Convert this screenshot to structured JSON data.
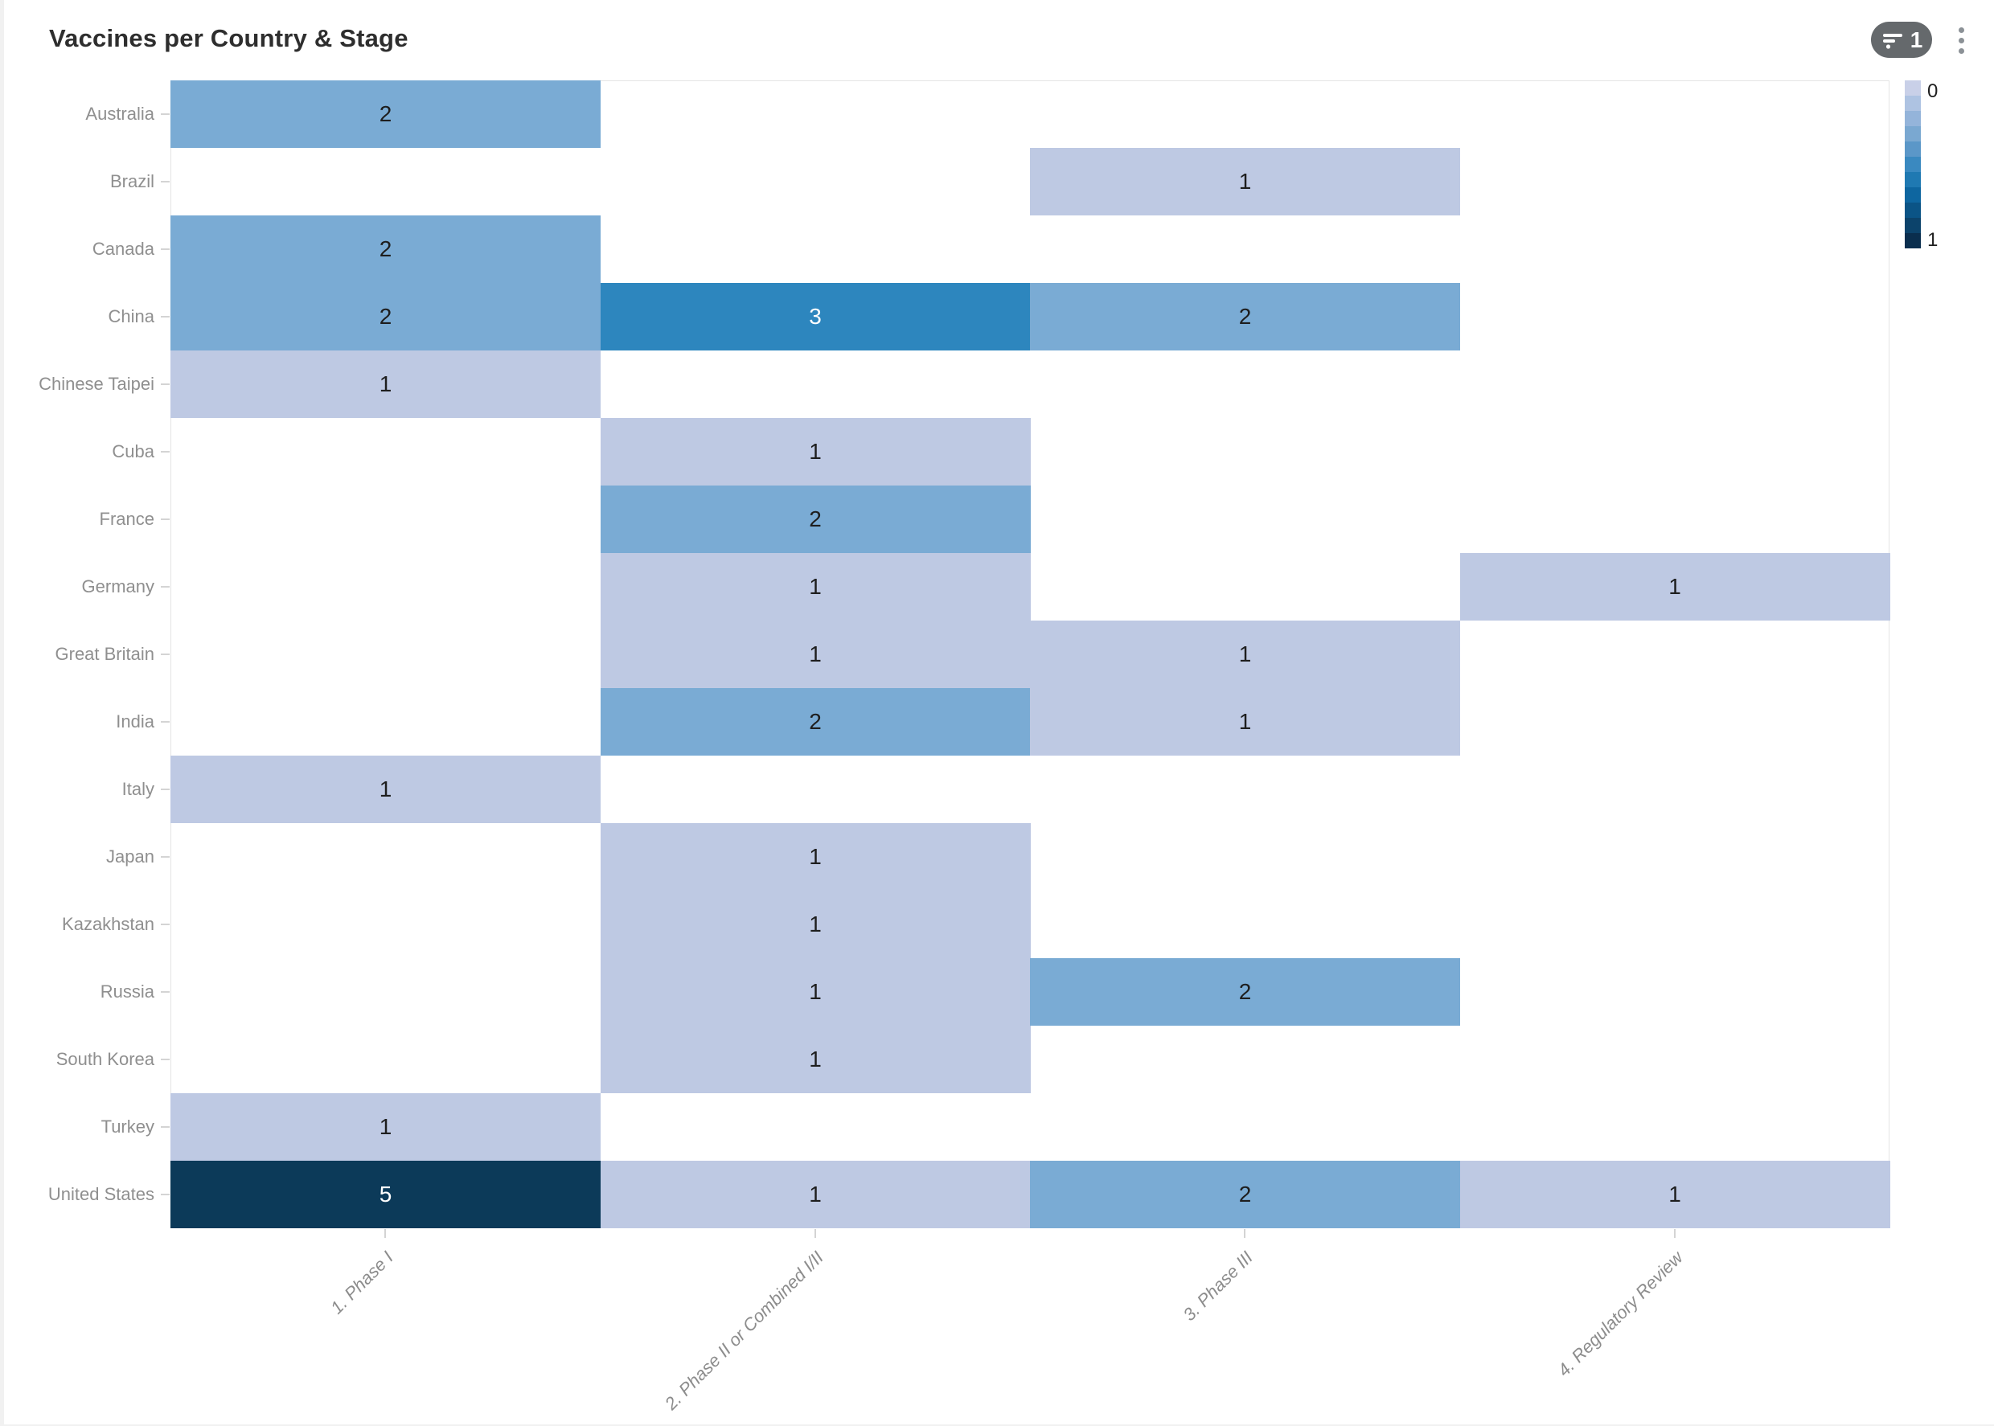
{
  "header": {
    "title": "Vaccines per Country & Stage",
    "filter_count": "1"
  },
  "chart_data": {
    "type": "heatmap",
    "title": "Vaccines per Country & Stage",
    "xlabel": "",
    "ylabel": "",
    "x_categories": [
      "1. Phase I",
      "2. Phase II or Combined I/II",
      "3. Phase III",
      "4. Regulatory Review"
    ],
    "y_categories": [
      "Australia",
      "Brazil",
      "Canada",
      "China",
      "Chinese Taipei",
      "Cuba",
      "France",
      "Germany",
      "Great Britain",
      "India",
      "Italy",
      "Japan",
      "Kazakhstan",
      "Russia",
      "South Korea",
      "Turkey",
      "United States"
    ],
    "cells": [
      {
        "country": "Australia",
        "stage": "1. Phase I",
        "value": 2
      },
      {
        "country": "Brazil",
        "stage": "3. Phase III",
        "value": 1
      },
      {
        "country": "Canada",
        "stage": "1. Phase I",
        "value": 2
      },
      {
        "country": "China",
        "stage": "1. Phase I",
        "value": 2
      },
      {
        "country": "China",
        "stage": "2. Phase II or Combined I/II",
        "value": 3
      },
      {
        "country": "China",
        "stage": "3. Phase III",
        "value": 2
      },
      {
        "country": "Chinese Taipei",
        "stage": "1. Phase I",
        "value": 1
      },
      {
        "country": "Cuba",
        "stage": "2. Phase II or Combined I/II",
        "value": 1
      },
      {
        "country": "France",
        "stage": "2. Phase II or Combined I/II",
        "value": 2
      },
      {
        "country": "Germany",
        "stage": "2. Phase II or Combined I/II",
        "value": 1
      },
      {
        "country": "Germany",
        "stage": "4. Regulatory Review",
        "value": 1
      },
      {
        "country": "Great Britain",
        "stage": "2. Phase II or Combined I/II",
        "value": 1
      },
      {
        "country": "Great Britain",
        "stage": "3. Phase III",
        "value": 1
      },
      {
        "country": "India",
        "stage": "2. Phase II or Combined I/II",
        "value": 2
      },
      {
        "country": "India",
        "stage": "3. Phase III",
        "value": 1
      },
      {
        "country": "Italy",
        "stage": "1. Phase I",
        "value": 1
      },
      {
        "country": "Japan",
        "stage": "2. Phase II or Combined I/II",
        "value": 1
      },
      {
        "country": "Kazakhstan",
        "stage": "2. Phase II or Combined I/II",
        "value": 1
      },
      {
        "country": "Russia",
        "stage": "2. Phase II or Combined I/II",
        "value": 1
      },
      {
        "country": "Russia",
        "stage": "3. Phase III",
        "value": 2
      },
      {
        "country": "South Korea",
        "stage": "2. Phase II or Combined I/II",
        "value": 1
      },
      {
        "country": "Turkey",
        "stage": "1. Phase I",
        "value": 1
      },
      {
        "country": "United States",
        "stage": "1. Phase I",
        "value": 5
      },
      {
        "country": "United States",
        "stage": "2. Phase II or Combined I/II",
        "value": 1
      },
      {
        "country": "United States",
        "stage": "3. Phase III",
        "value": 2
      },
      {
        "country": "United States",
        "stage": "4. Regulatory Review",
        "value": 1
      }
    ],
    "value_range": [
      1,
      5
    ],
    "value_colors": {
      "1": "#bec9e3",
      "2": "#7aabd4",
      "3": "#2d86be",
      "5": "#0c3a59"
    },
    "value_text_colors": {
      "1": "#1e1e1e",
      "2": "#1e1e1e",
      "3": "#ffffff",
      "5": "#ffffff"
    },
    "grid": false,
    "legend": {
      "position": "top-right",
      "top_label": "0",
      "bottom_label": "1",
      "steps": [
        "#c9d0e8",
        "#aec3e2",
        "#94b4da",
        "#7aa8d1",
        "#5b97c8",
        "#3a89c0",
        "#1f79b2",
        "#0e66a0",
        "#0b5486",
        "#0c436b",
        "#0a2e4e"
      ]
    }
  }
}
